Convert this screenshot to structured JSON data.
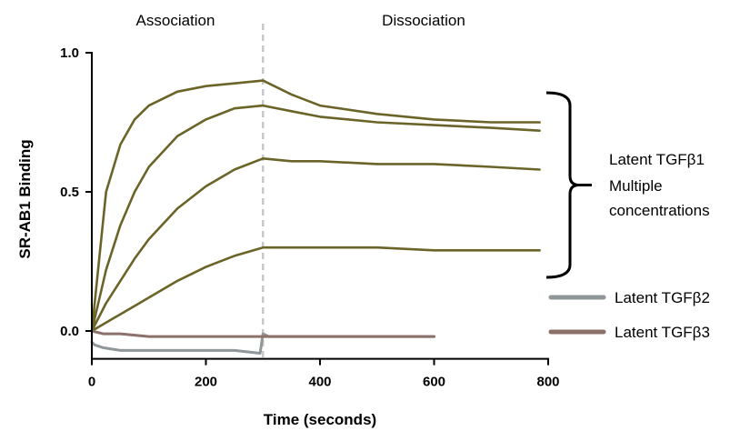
{
  "chart_data": {
    "type": "line",
    "title": "",
    "xlabel": "Time (seconds)",
    "ylabel": "SR-AB1 Binding",
    "xlim": [
      0,
      800
    ],
    "ylim": [
      -0.1,
      1.0
    ],
    "x_ticks": [
      0,
      200,
      400,
      600,
      800
    ],
    "y_ticks": [
      0.0,
      0.5,
      1.0
    ],
    "x_tick_labels": [
      "0",
      "200",
      "400",
      "600",
      "800"
    ],
    "y_tick_labels": [
      "0.0",
      "0.5",
      "1.0"
    ],
    "grid": false,
    "phase_divider_x": 300,
    "phases": [
      {
        "label": "Association",
        "x_start": 0,
        "x_end": 300
      },
      {
        "label": "Dissociation",
        "x_start": 300,
        "x_end": 800
      }
    ],
    "bracket_annotation": {
      "lines": [
        "Latent TGFβ1",
        "Multiple",
        "concentrations"
      ],
      "y_range": [
        0.2,
        0.85
      ]
    },
    "colors": {
      "tgfb1": "#6b6428",
      "tgfb2": "#8f9799",
      "tgfb3": "#8c706a",
      "divider": "#c8c8c8"
    },
    "legend": {
      "position": "right",
      "entries": [
        {
          "label": "Latent TGFβ2",
          "color": "#8f9799"
        },
        {
          "label": "Latent TGFβ3",
          "color": "#8c706a"
        }
      ]
    },
    "series": [
      {
        "x": [
          0,
          25,
          50,
          75,
          100,
          150,
          200,
          250,
          300,
          350,
          400,
          500,
          600,
          700,
          785
        ],
        "y": [
          0.0,
          0.5,
          0.67,
          0.76,
          0.81,
          0.86,
          0.88,
          0.89,
          0.9,
          0.85,
          0.81,
          0.78,
          0.76,
          0.75,
          0.75
        ],
        "color": "#6b6428"
      },
      {
        "x": [
          0,
          25,
          50,
          75,
          100,
          150,
          200,
          250,
          300,
          350,
          400,
          500,
          600,
          700,
          785
        ],
        "y": [
          0.0,
          0.22,
          0.38,
          0.5,
          0.59,
          0.7,
          0.76,
          0.8,
          0.81,
          0.79,
          0.77,
          0.75,
          0.74,
          0.73,
          0.72
        ],
        "color": "#6b6428"
      },
      {
        "x": [
          0,
          25,
          50,
          75,
          100,
          150,
          200,
          250,
          300,
          350,
          400,
          500,
          600,
          700,
          785
        ],
        "y": [
          0.0,
          0.1,
          0.18,
          0.26,
          0.33,
          0.44,
          0.52,
          0.58,
          0.62,
          0.61,
          0.61,
          0.6,
          0.6,
          0.59,
          0.58
        ],
        "color": "#6b6428"
      },
      {
        "x": [
          0,
          25,
          50,
          75,
          100,
          150,
          200,
          250,
          300,
          350,
          400,
          500,
          600,
          700,
          785
        ],
        "y": [
          0.0,
          0.03,
          0.06,
          0.09,
          0.12,
          0.18,
          0.23,
          0.27,
          0.3,
          0.3,
          0.3,
          0.3,
          0.29,
          0.29,
          0.29
        ],
        "color": "#6b6428"
      },
      {
        "name": "Latent TGFβ2",
        "x": [
          0,
          5,
          20,
          50,
          100,
          150,
          200,
          250,
          295,
          300,
          310,
          400,
          500,
          600
        ],
        "y": [
          -0.04,
          -0.05,
          -0.06,
          -0.07,
          -0.07,
          -0.07,
          -0.07,
          -0.07,
          -0.08,
          -0.01,
          -0.02,
          -0.02,
          -0.02,
          -0.02
        ],
        "color": "#8f9799"
      },
      {
        "name": "Latent TGFβ3",
        "x": [
          0,
          20,
          50,
          100,
          150,
          200,
          250,
          300,
          350,
          400,
          500,
          600
        ],
        "y": [
          0.0,
          -0.01,
          -0.01,
          -0.02,
          -0.02,
          -0.02,
          -0.02,
          -0.02,
          -0.02,
          -0.02,
          -0.02,
          -0.02
        ],
        "color": "#8c706a"
      }
    ]
  }
}
